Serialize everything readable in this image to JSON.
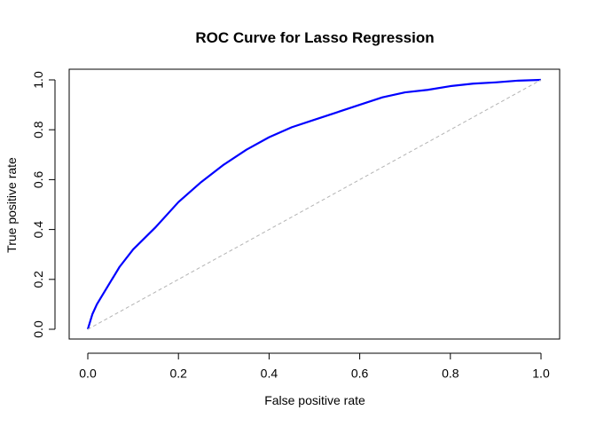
{
  "chart_data": {
    "type": "line",
    "title": "ROC Curve for Lasso Regression",
    "xlabel": "False positive rate",
    "ylabel": "True positive rate",
    "xlim": [
      0,
      1
    ],
    "ylim": [
      0,
      1
    ],
    "xticks": [
      "0.0",
      "0.2",
      "0.4",
      "0.6",
      "0.8",
      "1.0"
    ],
    "yticks": [
      "0.0",
      "0.2",
      "0.4",
      "0.6",
      "0.8",
      "1.0"
    ],
    "grid": false,
    "legend": "none",
    "series": [
      {
        "color": "#0000ff",
        "x": [
          0.0,
          0.005,
          0.01,
          0.02,
          0.03,
          0.05,
          0.07,
          0.1,
          0.15,
          0.2,
          0.25,
          0.3,
          0.35,
          0.4,
          0.45,
          0.5,
          0.55,
          0.6,
          0.65,
          0.7,
          0.75,
          0.8,
          0.85,
          0.9,
          0.95,
          1.0
        ],
        "y": [
          0.0,
          0.03,
          0.06,
          0.1,
          0.13,
          0.19,
          0.25,
          0.32,
          0.41,
          0.51,
          0.59,
          0.66,
          0.72,
          0.77,
          0.81,
          0.84,
          0.87,
          0.9,
          0.93,
          0.95,
          0.96,
          0.975,
          0.985,
          0.99,
          0.997,
          1.0
        ]
      },
      {
        "color": "#b3b3b3",
        "style": "dashed",
        "x": [
          0,
          1
        ],
        "y": [
          0,
          1
        ]
      }
    ]
  }
}
